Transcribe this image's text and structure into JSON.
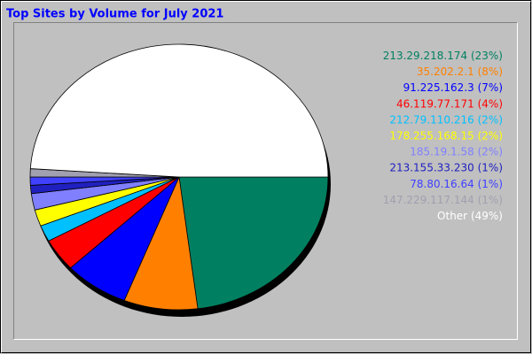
{
  "chart_data": {
    "type": "pie",
    "title": "Top Sites by Volume for July 2021",
    "categories": [
      "213.29.218.174",
      "35.202.2.1",
      "91.225.162.3",
      "46.119.77.171",
      "212.79.110.216",
      "178.255.168.15",
      "185.19.1.58",
      "213.155.33.230",
      "78.80.16.64",
      "147.229.117.144",
      "Other"
    ],
    "values": [
      23,
      8,
      7,
      4,
      2,
      2,
      2,
      1,
      1,
      1,
      49
    ],
    "value_labels": [
      "(23%)",
      "(8%)",
      "(7%)",
      "(4%)",
      "(2%)",
      "(2%)",
      "(2%)",
      "(1%)",
      "(1%)",
      "(1%)",
      "(49%)"
    ],
    "colors": [
      "#008060",
      "#ff8000",
      "#0000ff",
      "#ff0000",
      "#00c0ff",
      "#ffff00",
      "#8080ff",
      "#2020c0",
      "#4040ff",
      "#a0a0b0",
      "#ffffff"
    ]
  }
}
